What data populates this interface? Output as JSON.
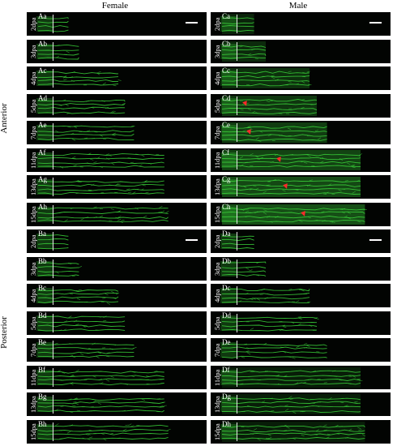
{
  "headers": {
    "female": "Female",
    "male": "Male"
  },
  "side": {
    "anterior": "Anterior",
    "posterior": "Posterior"
  },
  "timepoints": [
    "2dpa",
    "3dpa",
    "4dpa",
    "5dpa",
    "7dpa",
    "11dpa",
    "13dpa",
    "15dpa"
  ],
  "panels": {
    "A": [
      "Aa",
      "Ab",
      "Ac",
      "Ad",
      "Ae",
      "Af",
      "Ag",
      "Ah"
    ],
    "C": [
      "Ca",
      "Cb",
      "Cc",
      "Cd",
      "Ce",
      "Cf",
      "Cg",
      "Ch"
    ],
    "B": [
      "Ba",
      "Bb",
      "Bc",
      "Bd",
      "Be",
      "Bf",
      "Bg",
      "Bh"
    ],
    "D": [
      "Da",
      "Db",
      "Dc",
      "Dd",
      "De",
      "Df",
      "Dg",
      "Dh"
    ]
  },
  "regen_fraction": [
    0.12,
    0.2,
    0.5,
    0.55,
    0.62,
    0.85,
    0.85,
    0.88
  ],
  "colors": {
    "vessel": "#3bd63b",
    "background": "#020402",
    "arrow": "#ff2a2a",
    "amputation_line": "#e8e8e8"
  },
  "arrows_in_panels": [
    "Cd",
    "Ce",
    "Cf",
    "Cg",
    "Ch"
  ]
}
